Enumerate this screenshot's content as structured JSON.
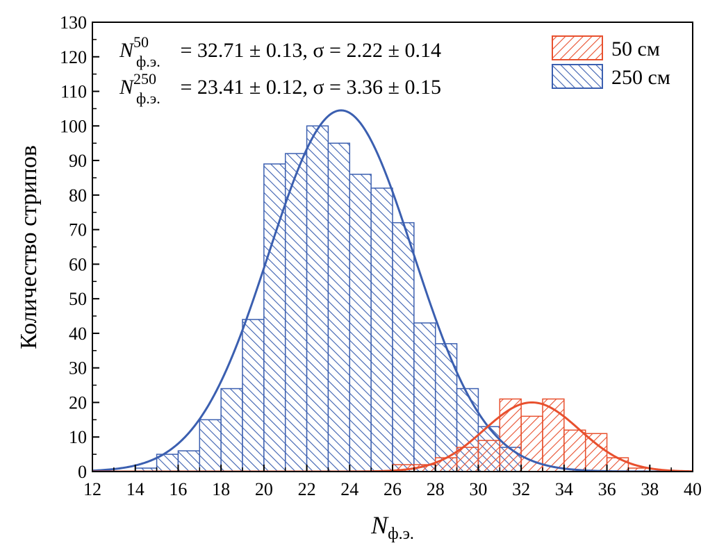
{
  "chart_data": {
    "type": "bar",
    "subtype": "histogram",
    "xlabel": {
      "main": "N",
      "sub": "ф.э."
    },
    "ylabel": "Количество стрипов",
    "xlim": [
      12,
      40
    ],
    "ylim": [
      0,
      130
    ],
    "xticks": [
      12,
      14,
      16,
      18,
      20,
      22,
      24,
      26,
      28,
      30,
      32,
      34,
      36,
      38,
      40
    ],
    "yticks": [
      0,
      10,
      20,
      30,
      40,
      50,
      60,
      70,
      80,
      90,
      100,
      110,
      120,
      130
    ],
    "bin_width": 1,
    "legend_position": "top-right",
    "series": [
      {
        "name": "250 см",
        "color": "#3b5fb0",
        "hatch": "backslash",
        "bin_starts": [
          14,
          15,
          16,
          17,
          18,
          19,
          20,
          21,
          22,
          23,
          24,
          25,
          26,
          27,
          28,
          29,
          30,
          31
        ],
        "values": [
          1,
          5,
          6,
          15,
          24,
          44,
          89,
          92,
          100,
          95,
          86,
          82,
          72,
          43,
          37,
          24,
          13,
          7
        ],
        "fit": {
          "amplitude": 104.5,
          "mean": 23.6,
          "sigma": 3.36
        }
      },
      {
        "name": "50 см",
        "color": "#e8502e",
        "hatch": "slash",
        "bin_starts": [
          26,
          27,
          28,
          29,
          30,
          31,
          32,
          33,
          34,
          35,
          36,
          37
        ],
        "values": [
          2,
          2,
          4,
          7,
          9,
          21,
          16,
          21,
          12,
          11,
          4,
          1
        ],
        "fit": {
          "amplitude": 20,
          "mean": 32.5,
          "sigma": 2.22
        }
      }
    ],
    "annotations": [
      {
        "symbol": "N",
        "sup": "50",
        "sub": "ф.э.",
        "text": " = 32.71 ± 0.13, σ = 2.22 ± 0.14"
      },
      {
        "symbol": "N",
        "sup": "250",
        "sub": "ф.э.",
        "text": " = 23.41 ± 0.12, σ = 3.36 ± 0.15"
      }
    ],
    "grid": false
  }
}
